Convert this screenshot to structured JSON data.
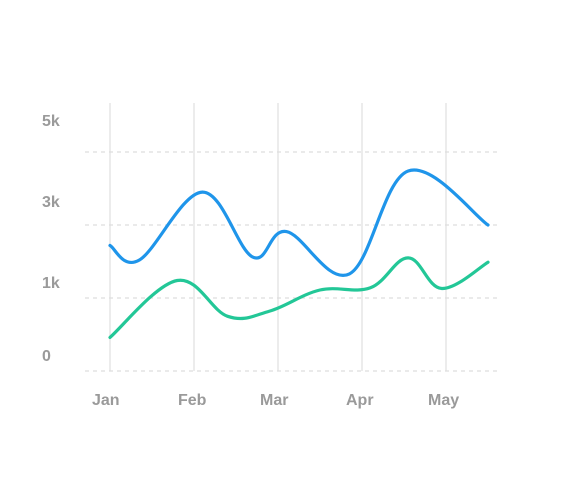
{
  "chart_data": {
    "type": "line",
    "x": [
      "Jan",
      "Feb",
      "Mar",
      "Apr",
      "May"
    ],
    "y_ticks": [
      "0",
      "1k",
      "3k",
      "5k"
    ],
    "series": [
      {
        "color": "#1f95ea",
        "x": [
          0,
          0.35,
          1.1,
          1.7,
          2.1,
          2.85,
          3.55,
          4.5
        ],
        "values": [
          1.72,
          1.52,
          2.45,
          1.56,
          1.91,
          1.33,
          2.74,
          2.0
        ]
      },
      {
        "color": "#23c797",
        "x": [
          0,
          0.8,
          1.4,
          1.9,
          2.5,
          3.1,
          3.55,
          3.95,
          4.5
        ],
        "values": [
          0.46,
          1.24,
          0.75,
          0.82,
          1.11,
          1.14,
          1.55,
          1.13,
          1.49
        ]
      }
    ],
    "grid": {
      "horizontal": true,
      "vertical": true
    },
    "legend": "none"
  }
}
